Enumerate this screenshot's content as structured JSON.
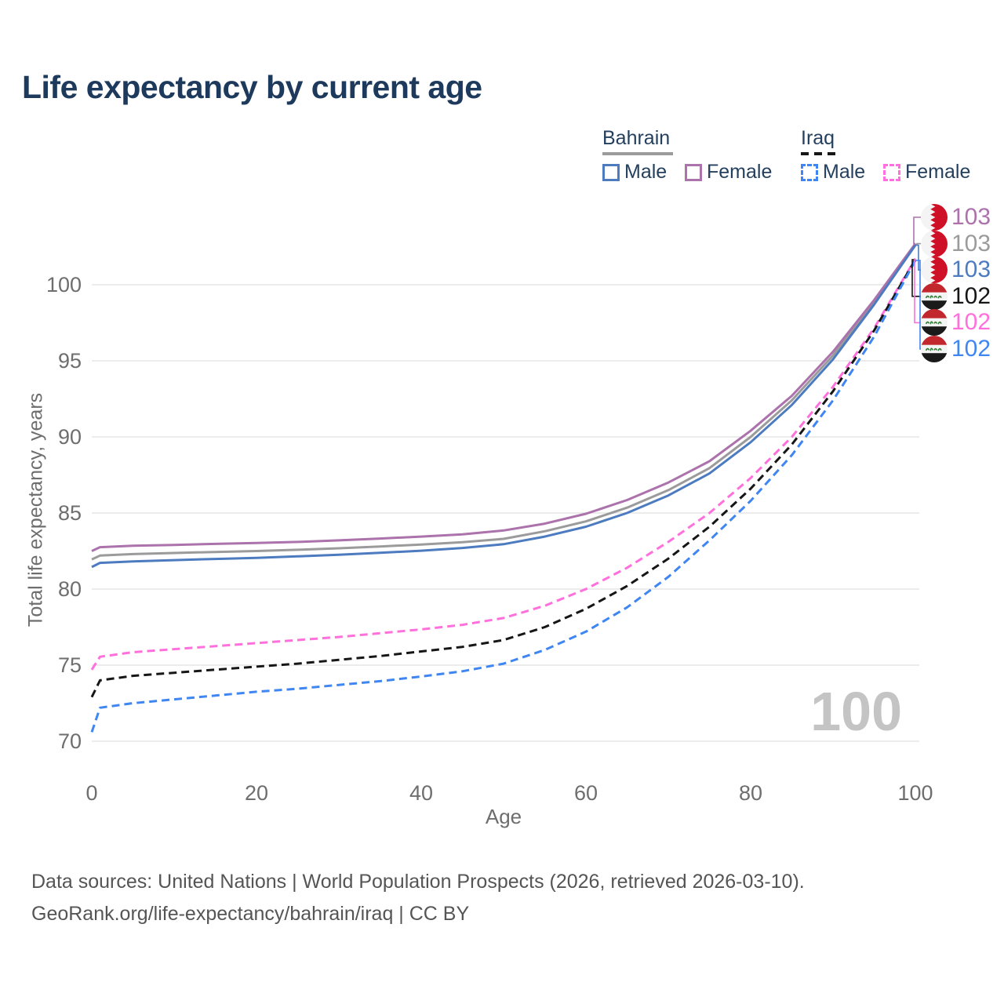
{
  "title": "Life expectancy by current age",
  "legend": {
    "groups": [
      {
        "label": "Bahrain",
        "line_style": "solid",
        "underline_color": "#9b9b9b",
        "items": [
          {
            "label": "Male",
            "color": "#4c7bc0",
            "dashed": false
          },
          {
            "label": "Female",
            "color": "#ab72ab",
            "dashed": false
          }
        ]
      },
      {
        "label": "Iraq",
        "line_style": "dashed",
        "underline_color": "#161616",
        "items": [
          {
            "label": "Male",
            "color": "#3f86f2",
            "dashed": true
          },
          {
            "label": "Female",
            "color": "#ff70dc",
            "dashed": true
          }
        ]
      }
    ]
  },
  "chart_data": {
    "type": "line",
    "title": "Life expectancy by current age",
    "xlabel": "Age",
    "ylabel": "Total life expectancy, years",
    "x_ticks": [
      0,
      20,
      40,
      60,
      80,
      100
    ],
    "y_ticks": [
      70,
      75,
      80,
      85,
      90,
      95,
      100
    ],
    "xlim": [
      0,
      100
    ],
    "ylim": [
      69.5,
      103.5
    ],
    "grid": "horizontal-only",
    "legend_position": "top-right",
    "hover_age_watermark": "100",
    "series": [
      {
        "name": "Bahrain Female",
        "country": "Bahrain",
        "sex": "Female",
        "color": "#ab72ab",
        "dashed": false,
        "points": [
          [
            0,
            82.5
          ],
          [
            1,
            82.75
          ],
          [
            5,
            82.85
          ],
          [
            10,
            82.9
          ],
          [
            15,
            82.97
          ],
          [
            20,
            83.03
          ],
          [
            25,
            83.1
          ],
          [
            30,
            83.2
          ],
          [
            35,
            83.32
          ],
          [
            40,
            83.45
          ],
          [
            45,
            83.6
          ],
          [
            50,
            83.85
          ],
          [
            55,
            84.3
          ],
          [
            60,
            84.95
          ],
          [
            65,
            85.85
          ],
          [
            70,
            87.0
          ],
          [
            75,
            88.4
          ],
          [
            80,
            90.4
          ],
          [
            85,
            92.7
          ],
          [
            90,
            95.6
          ],
          [
            95,
            99.0
          ],
          [
            100,
            102.7
          ]
        ]
      },
      {
        "name": "Bahrain Total",
        "country": "Bahrain",
        "sex": "Both",
        "color": "#9b9b9b",
        "dashed": false,
        "points": [
          [
            0,
            81.95
          ],
          [
            1,
            82.2
          ],
          [
            5,
            82.3
          ],
          [
            10,
            82.37
          ],
          [
            15,
            82.44
          ],
          [
            20,
            82.5
          ],
          [
            25,
            82.58
          ],
          [
            30,
            82.68
          ],
          [
            35,
            82.8
          ],
          [
            40,
            82.93
          ],
          [
            45,
            83.08
          ],
          [
            50,
            83.3
          ],
          [
            55,
            83.8
          ],
          [
            60,
            84.45
          ],
          [
            65,
            85.35
          ],
          [
            70,
            86.5
          ],
          [
            75,
            87.95
          ],
          [
            80,
            90.0
          ],
          [
            85,
            92.4
          ],
          [
            90,
            95.35
          ],
          [
            95,
            98.85
          ],
          [
            100,
            102.65
          ]
        ]
      },
      {
        "name": "Bahrain Male",
        "country": "Bahrain",
        "sex": "Male",
        "color": "#4c7bc0",
        "dashed": false,
        "points": [
          [
            0,
            81.45
          ],
          [
            1,
            81.72
          ],
          [
            5,
            81.82
          ],
          [
            10,
            81.9
          ],
          [
            15,
            81.98
          ],
          [
            20,
            82.05
          ],
          [
            25,
            82.15
          ],
          [
            30,
            82.25
          ],
          [
            35,
            82.38
          ],
          [
            40,
            82.52
          ],
          [
            45,
            82.7
          ],
          [
            50,
            82.95
          ],
          [
            55,
            83.45
          ],
          [
            60,
            84.1
          ],
          [
            65,
            85.0
          ],
          [
            70,
            86.15
          ],
          [
            75,
            87.6
          ],
          [
            80,
            89.65
          ],
          [
            85,
            92.1
          ],
          [
            90,
            95.1
          ],
          [
            95,
            98.7
          ],
          [
            100,
            102.6
          ]
        ]
      },
      {
        "name": "Iraq Female",
        "country": "Iraq",
        "sex": "Female",
        "color": "#ff70dc",
        "dashed": true,
        "points": [
          [
            0,
            74.7
          ],
          [
            1,
            75.55
          ],
          [
            5,
            75.85
          ],
          [
            10,
            76.05
          ],
          [
            15,
            76.25
          ],
          [
            20,
            76.45
          ],
          [
            25,
            76.65
          ],
          [
            30,
            76.85
          ],
          [
            35,
            77.1
          ],
          [
            40,
            77.35
          ],
          [
            45,
            77.65
          ],
          [
            50,
            78.1
          ],
          [
            55,
            78.9
          ],
          [
            60,
            80.0
          ],
          [
            65,
            81.4
          ],
          [
            70,
            83.1
          ],
          [
            75,
            85.0
          ],
          [
            80,
            87.3
          ],
          [
            85,
            90.0
          ],
          [
            90,
            93.3
          ],
          [
            95,
            97.15
          ],
          [
            100,
            101.7
          ]
        ]
      },
      {
        "name": "Iraq Total",
        "country": "Iraq",
        "sex": "Both",
        "color": "#161616",
        "dashed": true,
        "points": [
          [
            0,
            72.9
          ],
          [
            1,
            74.0
          ],
          [
            5,
            74.3
          ],
          [
            10,
            74.5
          ],
          [
            15,
            74.7
          ],
          [
            20,
            74.9
          ],
          [
            25,
            75.1
          ],
          [
            30,
            75.35
          ],
          [
            35,
            75.6
          ],
          [
            40,
            75.9
          ],
          [
            45,
            76.2
          ],
          [
            50,
            76.65
          ],
          [
            55,
            77.5
          ],
          [
            60,
            78.7
          ],
          [
            65,
            80.2
          ],
          [
            70,
            82.0
          ],
          [
            75,
            84.1
          ],
          [
            80,
            86.6
          ],
          [
            85,
            89.5
          ],
          [
            90,
            93.0
          ],
          [
            95,
            97.0
          ],
          [
            100,
            101.65
          ]
        ]
      },
      {
        "name": "Iraq Male",
        "country": "Iraq",
        "sex": "Male",
        "color": "#3f86f2",
        "dashed": true,
        "points": [
          [
            0,
            70.6
          ],
          [
            1,
            72.2
          ],
          [
            5,
            72.5
          ],
          [
            10,
            72.75
          ],
          [
            15,
            73.0
          ],
          [
            20,
            73.25
          ],
          [
            25,
            73.45
          ],
          [
            30,
            73.7
          ],
          [
            35,
            73.95
          ],
          [
            40,
            74.25
          ],
          [
            45,
            74.6
          ],
          [
            50,
            75.1
          ],
          [
            55,
            76.0
          ],
          [
            60,
            77.2
          ],
          [
            65,
            78.8
          ],
          [
            70,
            80.8
          ],
          [
            75,
            83.2
          ],
          [
            80,
            85.8
          ],
          [
            85,
            88.8
          ],
          [
            90,
            92.4
          ],
          [
            95,
            96.6
          ],
          [
            100,
            101.6
          ]
        ]
      }
    ],
    "end_labels": [
      {
        "series": "Bahrain Female",
        "flag": "bahrain-flag-icon",
        "value": "103",
        "color": "#ab72ab"
      },
      {
        "series": "Bahrain Total",
        "flag": "bahrain-flag-icon",
        "value": "103",
        "color": "#9b9b9b"
      },
      {
        "series": "Bahrain Male",
        "flag": "bahrain-flag-icon",
        "value": "103",
        "color": "#4c7bc0"
      },
      {
        "series": "Iraq Total",
        "flag": "iraq-flag-icon",
        "value": "102",
        "color": "#161616"
      },
      {
        "series": "Iraq Female",
        "flag": "iraq-flag-icon",
        "value": "102",
        "color": "#ff70dc"
      },
      {
        "series": "Iraq Male",
        "flag": "iraq-flag-icon",
        "value": "102",
        "color": "#3f86f2"
      }
    ]
  },
  "icons": {
    "bahrain_flag": "bahrain-flag-icon (red/white serrated circular flag)",
    "iraq_flag": "iraq-flag-icon (red/white/black tricolor circular flag with green script)"
  },
  "colors": {
    "title_text": "#1d3a5c",
    "axis_text": "#6e6e6e",
    "gridline": "#ececec",
    "watermark": "#c4c4c4",
    "footer_text": "#555555"
  },
  "footer": {
    "line1": "Data sources: United Nations | World Population Prospects (2026, retrieved 2026-03-10).",
    "line2": "GeoRank.org/life-expectancy/bahrain/iraq | CC BY"
  }
}
